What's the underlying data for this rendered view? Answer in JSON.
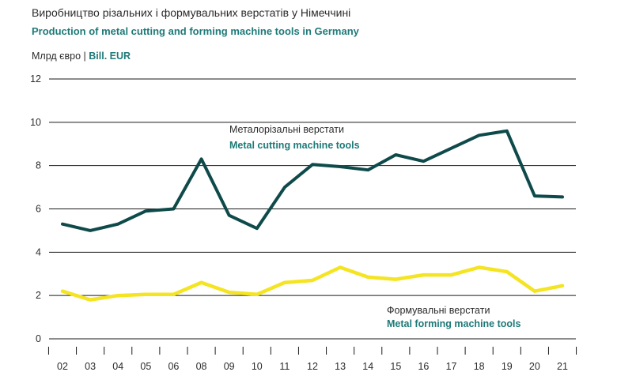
{
  "colors": {
    "teal_text": "#1e7a78",
    "cutting_line": "#0f4a4a",
    "forming_line": "#f4e421",
    "grid": "#1a1a1a",
    "text": "#2b2b2b"
  },
  "chart_data": {
    "type": "line",
    "title": "Виробництво різальних і формувальних верстатів у Німеччині",
    "subtitle": "Production of metal cutting and forming machine tools in Germany",
    "ylabel_uk": "Млрд євро",
    "ylabel_separator": "|",
    "ylabel_en": "Bill. EUR",
    "ylim": [
      0,
      12
    ],
    "yticks": [
      "0",
      "2",
      "4",
      "6",
      "8",
      "10",
      "12"
    ],
    "grid": true,
    "categories": [
      "02",
      "03",
      "04",
      "05",
      "06",
      "08",
      "09",
      "10",
      "11",
      "12",
      "13",
      "14",
      "15",
      "16",
      "17",
      "18",
      "19",
      "20",
      "21"
    ],
    "series": [
      {
        "key": "cutting",
        "name_uk": "Металорізальні верстати",
        "name_en": "Metal cutting machine tools",
        "values": [
          5.3,
          5.0,
          5.3,
          5.9,
          6.0,
          8.3,
          5.7,
          5.1,
          7.0,
          8.05,
          7.95,
          7.8,
          8.5,
          8.2,
          8.8,
          9.4,
          9.6,
          6.6,
          6.55
        ]
      },
      {
        "key": "forming",
        "name_uk": "Формувальні верстати",
        "name_en": "Metal forming machine tools",
        "values": [
          2.2,
          1.8,
          2.0,
          2.05,
          2.05,
          2.6,
          2.15,
          2.05,
          2.6,
          2.7,
          3.3,
          2.85,
          2.75,
          2.95,
          2.95,
          3.3,
          3.1,
          2.2,
          2.45
        ]
      }
    ]
  }
}
